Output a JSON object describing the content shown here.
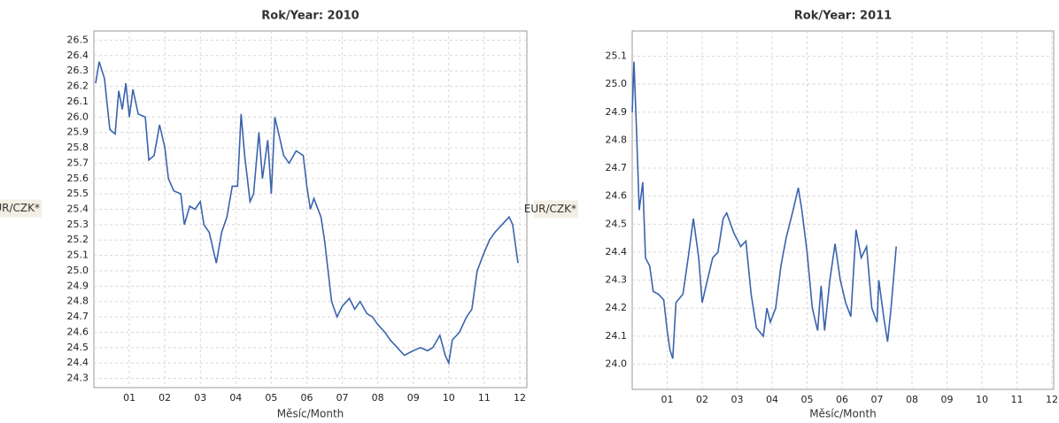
{
  "chart_data": [
    {
      "type": "line",
      "title": "Rok/Year: 2010",
      "x_label": "Měsíc/Month",
      "y_label": "EUR/CZK*",
      "color": "#3b63ad",
      "grid": true,
      "xlim": [
        0,
        12.2
      ],
      "ylim": [
        24.24,
        26.56
      ],
      "xticks": [
        {
          "value": 1,
          "label": "01"
        },
        {
          "value": 2,
          "label": "02"
        },
        {
          "value": 3,
          "label": "03"
        },
        {
          "value": 4,
          "label": "04"
        },
        {
          "value": 5,
          "label": "05"
        },
        {
          "value": 6,
          "label": "06"
        },
        {
          "value": 7,
          "label": "07"
        },
        {
          "value": 8,
          "label": "08"
        },
        {
          "value": 9,
          "label": "09"
        },
        {
          "value": 10,
          "label": "10"
        },
        {
          "value": 11,
          "label": "11"
        },
        {
          "value": 12,
          "label": "12"
        }
      ],
      "yticks": [
        24.3,
        24.4,
        24.5,
        24.6,
        24.7,
        24.8,
        24.9,
        {
          "value": 25,
          "label": "25.0"
        },
        25.1,
        25.2,
        25.3,
        25.4,
        25.5,
        25.6,
        25.7,
        25.8,
        25.9,
        {
          "value": 26,
          "label": "26.0"
        },
        26.1,
        26.2,
        26.3,
        26.4,
        26.5
      ],
      "x": [
        0.05,
        0.15,
        0.3,
        0.45,
        0.6,
        0.7,
        0.8,
        0.9,
        1.0,
        1.1,
        1.25,
        1.45,
        1.55,
        1.7,
        1.85,
        2.0,
        2.1,
        2.25,
        2.45,
        2.55,
        2.7,
        2.85,
        3.0,
        3.1,
        3.25,
        3.45,
        3.6,
        3.75,
        3.9,
        4.05,
        4.15,
        4.25,
        4.4,
        4.5,
        4.65,
        4.75,
        4.9,
        5.0,
        5.1,
        5.2,
        5.35,
        5.5,
        5.7,
        5.9,
        6.0,
        6.1,
        6.2,
        6.4,
        6.5,
        6.7,
        6.85,
        7.0,
        7.2,
        7.35,
        7.5,
        7.7,
        7.85,
        8.0,
        8.2,
        8.35,
        8.55,
        8.75,
        9.0,
        9.2,
        9.4,
        9.55,
        9.75,
        9.9,
        10.0,
        10.1,
        10.3,
        10.5,
        10.65,
        10.8,
        11.0,
        11.15,
        11.3,
        11.5,
        11.7,
        11.8,
        11.95
      ],
      "values": [
        26.22,
        26.36,
        26.25,
        25.92,
        25.89,
        26.17,
        26.05,
        26.22,
        26.0,
        26.18,
        26.02,
        26.0,
        25.72,
        25.75,
        25.95,
        25.8,
        25.6,
        25.52,
        25.5,
        25.3,
        25.42,
        25.4,
        25.45,
        25.3,
        25.25,
        25.05,
        25.25,
        25.35,
        25.55,
        25.55,
        26.02,
        25.75,
        25.45,
        25.5,
        25.9,
        25.6,
        25.85,
        25.5,
        26.0,
        25.9,
        25.75,
        25.7,
        25.78,
        25.75,
        25.55,
        25.4,
        25.47,
        25.35,
        25.2,
        24.8,
        24.7,
        24.77,
        24.82,
        24.75,
        24.8,
        24.72,
        24.7,
        24.65,
        24.6,
        24.55,
        24.5,
        24.45,
        24.48,
        24.5,
        24.48,
        24.5,
        24.58,
        24.45,
        24.4,
        24.55,
        24.6,
        24.7,
        24.75,
        25.0,
        25.12,
        25.2,
        25.25,
        25.3,
        25.35,
        25.3,
        25.05
      ]
    },
    {
      "type": "line",
      "title": "Rok/Year: 2011",
      "x_label": "Měsíc/Month",
      "y_label": "EUR/CZK*",
      "color": "#3b63ad",
      "grid": true,
      "xlim": [
        0,
        12.05
      ],
      "ylim": [
        23.91,
        25.19
      ],
      "xticks": [
        {
          "value": 1,
          "label": "01"
        },
        {
          "value": 2,
          "label": "02"
        },
        {
          "value": 3,
          "label": "03"
        },
        {
          "value": 4,
          "label": "04"
        },
        {
          "value": 5,
          "label": "05"
        },
        {
          "value": 6,
          "label": "06"
        },
        {
          "value": 7,
          "label": "07"
        },
        {
          "value": 8,
          "label": "08"
        },
        {
          "value": 9,
          "label": "09"
        },
        {
          "value": 10,
          "label": "10"
        },
        {
          "value": 11,
          "label": "11"
        },
        {
          "value": 12,
          "label": "12"
        }
      ],
      "yticks": [
        {
          "value": 24,
          "label": "24.0"
        },
        24.1,
        24.2,
        24.3,
        24.4,
        24.5,
        24.6,
        24.7,
        24.8,
        24.9,
        {
          "value": 25,
          "label": "25.0"
        },
        25.1
      ],
      "x": [
        0.0,
        0.05,
        0.12,
        0.2,
        0.3,
        0.38,
        0.5,
        0.6,
        0.75,
        0.9,
        1.0,
        1.08,
        1.16,
        1.25,
        1.45,
        1.6,
        1.75,
        1.9,
        2.0,
        2.15,
        2.3,
        2.45,
        2.6,
        2.7,
        2.9,
        3.1,
        3.25,
        3.4,
        3.55,
        3.75,
        3.85,
        3.95,
        4.1,
        4.25,
        4.4,
        4.6,
        4.75,
        4.85,
        5.0,
        5.15,
        5.3,
        5.4,
        5.5,
        5.65,
        5.8,
        5.95,
        6.1,
        6.25,
        6.4,
        6.55,
        6.7,
        6.85,
        7.0,
        7.05,
        7.2,
        7.3,
        7.4,
        7.55
      ],
      "values": [
        24.9,
        25.08,
        24.85,
        24.55,
        24.65,
        24.38,
        24.35,
        24.26,
        24.25,
        24.23,
        24.12,
        24.05,
        24.02,
        24.22,
        24.25,
        24.38,
        24.52,
        24.38,
        24.22,
        24.3,
        24.38,
        24.4,
        24.52,
        24.54,
        24.47,
        24.42,
        24.44,
        24.25,
        24.13,
        24.1,
        24.2,
        24.15,
        24.2,
        24.35,
        24.45,
        24.55,
        24.63,
        24.55,
        24.4,
        24.2,
        24.12,
        24.28,
        24.12,
        24.3,
        24.43,
        24.3,
        24.22,
        24.17,
        24.48,
        24.38,
        24.42,
        24.2,
        24.15,
        24.3,
        24.16,
        24.08,
        24.2,
        24.42
      ]
    }
  ]
}
